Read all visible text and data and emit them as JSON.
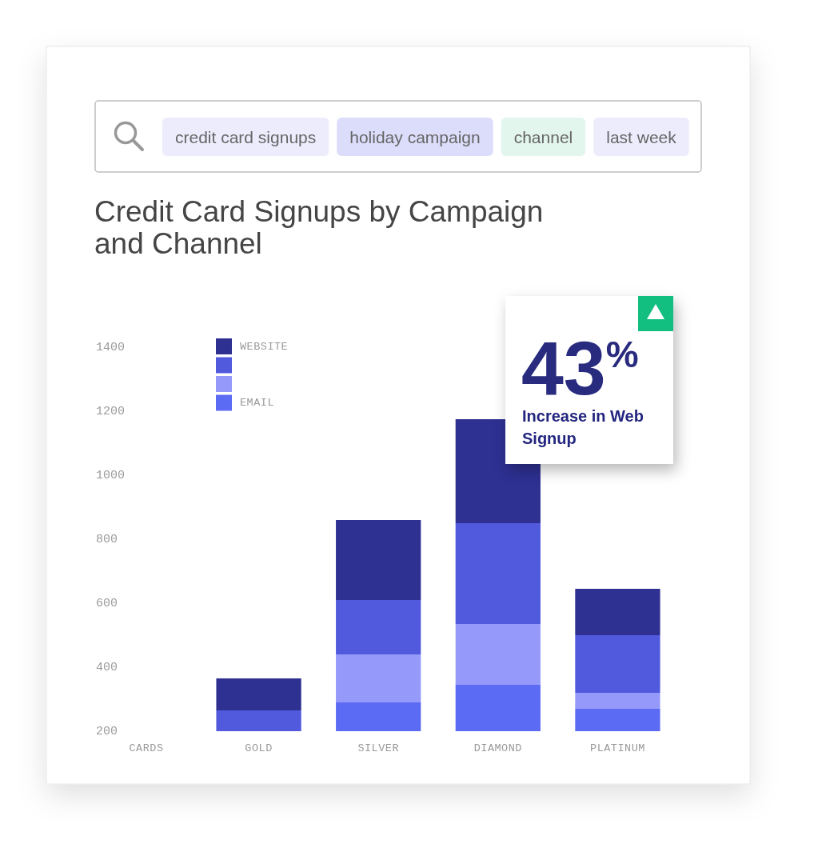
{
  "chart_data": {
    "type": "bar",
    "title": "Credit Card Signups by Campaign and Channel",
    "xlabel": "CARDS",
    "categories": [
      "GOLD",
      "SILVER",
      "DIAMOND",
      "PLATINUM"
    ],
    "series": [
      {
        "name": "EMAIL",
        "color": "#5c6bf4",
        "base": [
          null,
          200,
          200,
          200
        ],
        "values": [
          null,
          90,
          145,
          70
        ]
      },
      {
        "color": "#959afa",
        "base": [
          null,
          290,
          345,
          270
        ],
        "values": [
          null,
          150,
          190,
          50
        ]
      },
      {
        "color": "#5159dd",
        "base": [
          200,
          440,
          535,
          320
        ],
        "values": [
          65,
          170,
          315,
          180
        ]
      },
      {
        "name": "WEBSITE",
        "color": "#2e3092",
        "base": [
          265,
          610,
          850,
          500
        ],
        "values": [
          100,
          250,
          325,
          145
        ]
      }
    ],
    "ylim": [
      200,
      1400
    ],
    "yticks": [
      200,
      400,
      600,
      800,
      1000,
      1200,
      1400
    ],
    "legend": "top left",
    "annotations": [
      "credit card signups",
      "holiday campaign",
      "channel",
      "last week",
      "43$^{%}$",
      "Increase in Web Signup"
    ]
  }
}
